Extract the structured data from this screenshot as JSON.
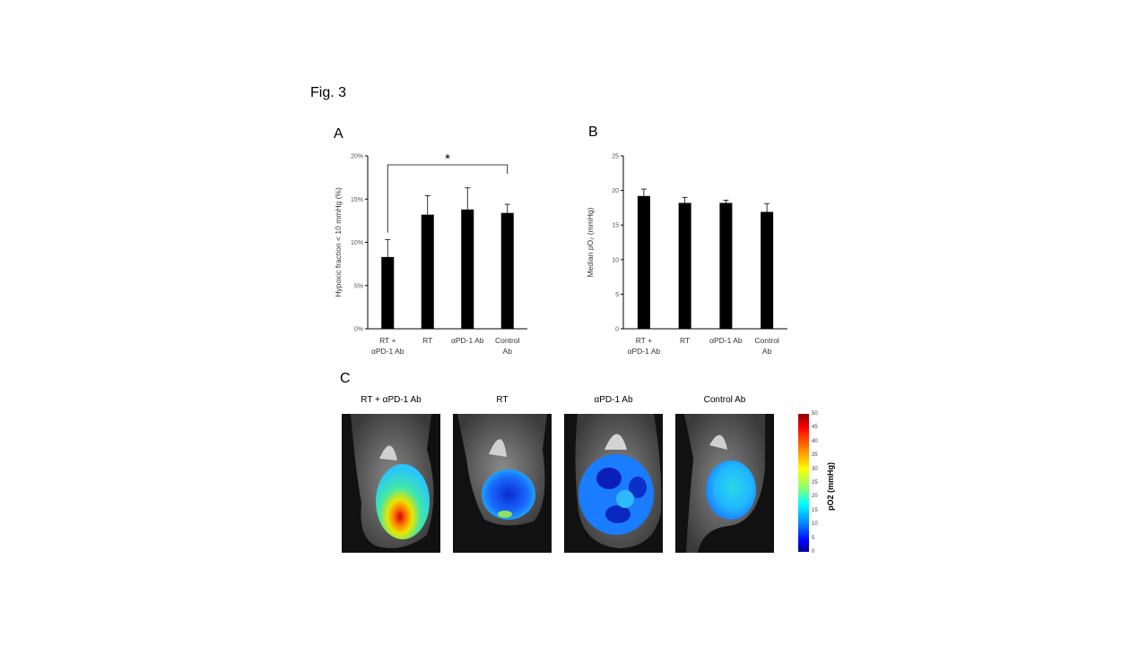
{
  "figure": {
    "title": "Fig. 3"
  },
  "chart_data": [
    {
      "panel": "A",
      "type": "bar",
      "categories": [
        [
          "RT +",
          "αPD-1 Ab"
        ],
        [
          "RT"
        ],
        [
          "αPD-1 Ab"
        ],
        [
          "Control",
          "Ab"
        ]
      ],
      "values": [
        8.3,
        13.2,
        13.8,
        13.4
      ],
      "errors": [
        2.0,
        2.2,
        2.5,
        1.0
      ],
      "ylabel": "Hypoxic fraction < 10 mmHg (%)",
      "yticks": [
        "0%",
        "5%",
        "10%",
        "15%",
        "20%"
      ],
      "ylim": [
        0,
        20
      ],
      "significance": {
        "from": 0,
        "to": 3,
        "label": "*"
      }
    },
    {
      "panel": "B",
      "type": "bar",
      "categories": [
        [
          "RT +",
          "αPD-1 Ab"
        ],
        [
          "RT"
        ],
        [
          "αPD-1 Ab"
        ],
        [
          "Control",
          "Ab"
        ]
      ],
      "values": [
        19.2,
        18.2,
        18.2,
        16.9
      ],
      "errors": [
        1.0,
        0.8,
        0.4,
        1.2
      ],
      "ylabel": "Median pO₂ (mmHg)",
      "yticks": [
        "0",
        "5",
        "10",
        "15",
        "20",
        "25"
      ],
      "ylim": [
        0,
        25
      ]
    }
  ],
  "panel_c": {
    "letter": "C",
    "images": [
      {
        "title": "RT + αPD-1 Ab"
      },
      {
        "title": "RT"
      },
      {
        "title": "αPD-1 Ab"
      },
      {
        "title": "Control Ab"
      }
    ],
    "colorbar": {
      "title": "pO2 (mmHg)",
      "ticks": [
        "50",
        "45",
        "40",
        "35",
        "30",
        "25",
        "20",
        "15",
        "10",
        "5",
        "0"
      ]
    }
  }
}
